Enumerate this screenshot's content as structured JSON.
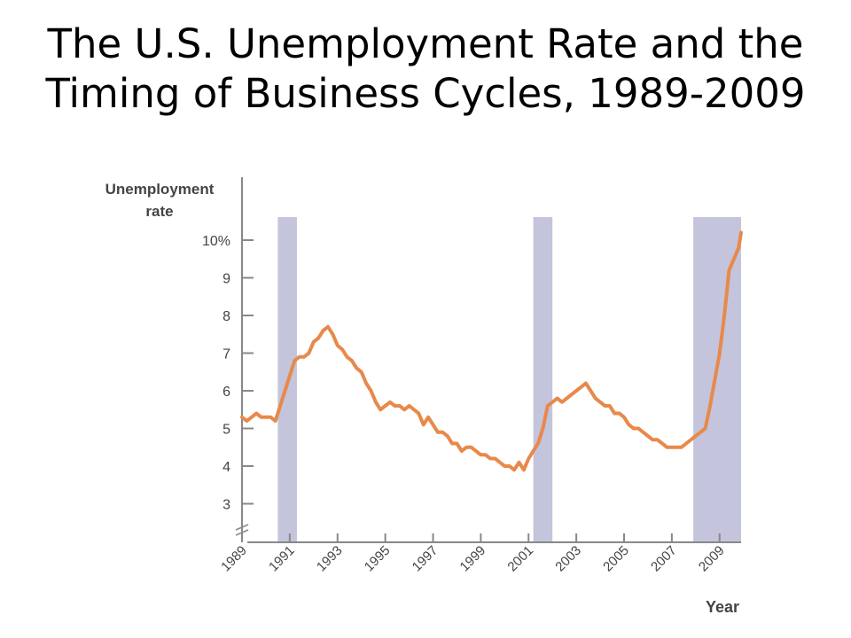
{
  "chart_data": {
    "type": "line",
    "title": "The U.S. Unemployment Rate and the\nTiming of Business Cycles, 1989-2009",
    "ylabel": [
      "Unemployment",
      "rate"
    ],
    "xlabel": "Year",
    "ylim": [
      2.5,
      10.6
    ],
    "xlim": [
      1989,
      2009.9
    ],
    "y_ticks": [
      3,
      4,
      5,
      6,
      7,
      8,
      9,
      10
    ],
    "y_tick_labels": [
      "3",
      "4",
      "5",
      "6",
      "7",
      "8",
      "9",
      "10%"
    ],
    "x_ticks": [
      1989,
      1991,
      1993,
      1995,
      1997,
      1999,
      2001,
      2003,
      2005,
      2007,
      2009
    ],
    "x_tick_labels": [
      "1989",
      "1991",
      "1993",
      "1995",
      "1997",
      "1999",
      "2001",
      "2003",
      "2005",
      "2007",
      "2009"
    ],
    "recessions": [
      {
        "start": 1990.5,
        "end": 1991.3
      },
      {
        "start": 2001.2,
        "end": 2002.0
      },
      {
        "start": 2007.9,
        "end": 2009.9
      }
    ],
    "colors": {
      "line": "#e8894a",
      "recession": "#c4c4dc",
      "axis": "#888888"
    },
    "series": [
      {
        "x": [
          1989.0,
          1989.2,
          1989.4,
          1989.6,
          1989.8,
          1990.0,
          1990.2,
          1990.4,
          1990.6,
          1990.8,
          1991.0,
          1991.2,
          1991.4,
          1991.6,
          1991.8,
          1992.0,
          1992.2,
          1992.4,
          1992.6,
          1992.8,
          1993.0,
          1993.2,
          1993.4,
          1993.6,
          1993.8,
          1994.0,
          1994.2,
          1994.4,
          1994.6,
          1994.8,
          1995.0,
          1995.2,
          1995.4,
          1995.6,
          1995.8,
          1996.0,
          1996.2,
          1996.4,
          1996.6,
          1996.8,
          1997.0,
          1997.2,
          1997.4,
          1997.6,
          1997.8,
          1998.0,
          1998.2,
          1998.4,
          1998.6,
          1998.8,
          1999.0,
          1999.2,
          1999.4,
          1999.6,
          1999.8,
          2000.0,
          2000.2,
          2000.4,
          2000.6,
          2000.8,
          2001.0,
          2001.2,
          2001.4,
          2001.6,
          2001.8,
          2002.0,
          2002.2,
          2002.4,
          2002.6,
          2002.8,
          2003.0,
          2003.2,
          2003.4,
          2003.6,
          2003.8,
          2004.0,
          2004.2,
          2004.4,
          2004.6,
          2004.8,
          2005.0,
          2005.2,
          2005.4,
          2005.6,
          2005.8,
          2006.0,
          2006.2,
          2006.4,
          2006.6,
          2006.8,
          2007.0,
          2007.2,
          2007.4,
          2007.6,
          2007.8,
          2008.0,
          2008.2,
          2008.4,
          2008.6,
          2008.8,
          2009.0,
          2009.2,
          2009.4,
          2009.6,
          2009.8,
          2009.9
        ],
        "values": [
          5.3,
          5.2,
          5.3,
          5.4,
          5.3,
          5.3,
          5.3,
          5.2,
          5.6,
          6.0,
          6.4,
          6.8,
          6.9,
          6.9,
          7.0,
          7.3,
          7.4,
          7.6,
          7.7,
          7.5,
          7.2,
          7.1,
          6.9,
          6.8,
          6.6,
          6.5,
          6.2,
          6.0,
          5.7,
          5.5,
          5.6,
          5.7,
          5.6,
          5.6,
          5.5,
          5.6,
          5.5,
          5.4,
          5.1,
          5.3,
          5.1,
          4.9,
          4.9,
          4.8,
          4.6,
          4.6,
          4.4,
          4.5,
          4.5,
          4.4,
          4.3,
          4.3,
          4.2,
          4.2,
          4.1,
          4.0,
          4.0,
          3.9,
          4.1,
          3.9,
          4.2,
          4.4,
          4.6,
          5.0,
          5.6,
          5.7,
          5.8,
          5.7,
          5.8,
          5.9,
          6.0,
          6.1,
          6.2,
          6.0,
          5.8,
          5.7,
          5.6,
          5.6,
          5.4,
          5.4,
          5.3,
          5.1,
          5.0,
          5.0,
          4.9,
          4.8,
          4.7,
          4.7,
          4.6,
          4.5,
          4.5,
          4.5,
          4.5,
          4.6,
          4.7,
          4.8,
          4.9,
          5.0,
          5.6,
          6.3,
          7.0,
          8.0,
          9.2,
          9.5,
          9.8,
          10.2
        ]
      }
    ]
  }
}
